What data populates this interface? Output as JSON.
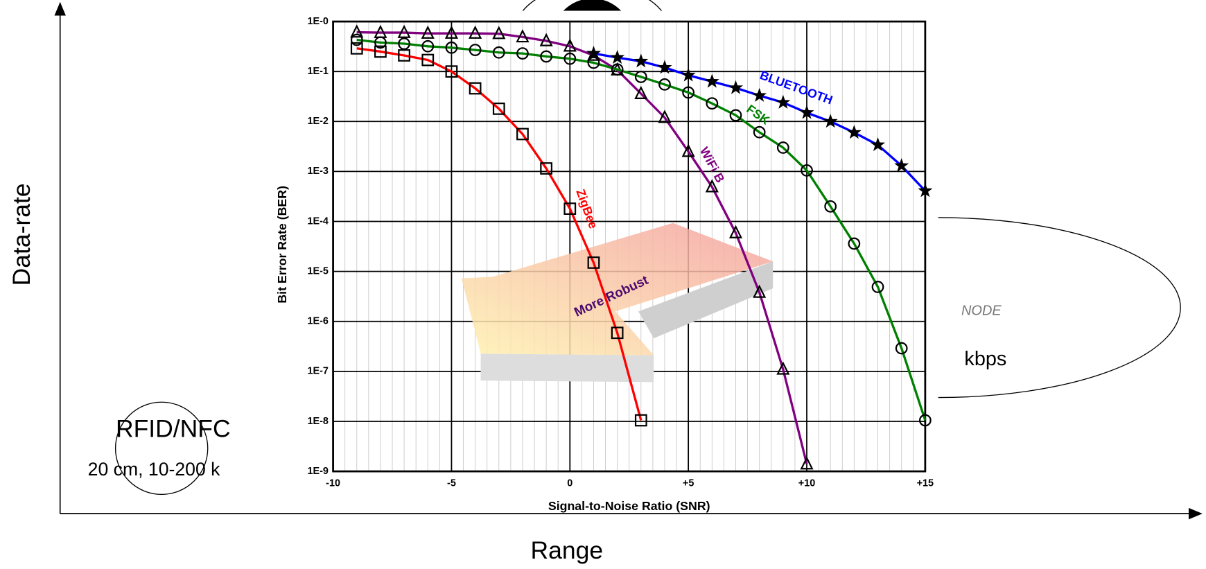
{
  "slide": {
    "y_axis_label": "Data-rate",
    "x_axis_label": "Range",
    "rfid_title": "RFID/NFC",
    "rfid_detail": "20 cm, 10-200 k",
    "node_label": "NODE",
    "node_rate": "kbps"
  },
  "chart_data": {
    "type": "line",
    "x_label": "Signal-to-Noise Ratio (SNR)",
    "y_label": "Bit Error Rate (BER)",
    "annotation": "More Robust",
    "ylog": true,
    "grid": true,
    "xlim": [
      -10,
      15
    ],
    "ylim": [
      1e-09,
      1
    ],
    "xticks": [
      -10,
      -5,
      0,
      {
        "value": 5,
        "label": "+5"
      },
      {
        "value": 10,
        "label": "+10"
      },
      {
        "value": 15,
        "label": "+15"
      }
    ],
    "yticks": [
      {
        "value": 1,
        "label": "1E-0"
      },
      {
        "value": 0.1,
        "label": "1E-1"
      },
      {
        "value": 0.01,
        "label": "1E-2"
      },
      {
        "value": 0.001,
        "label": "1E-3"
      },
      {
        "value": 0.0001,
        "label": "1E-4"
      },
      {
        "value": 1e-05,
        "label": "1E-5"
      },
      {
        "value": 1e-06,
        "label": "1E-6"
      },
      {
        "value": 1e-07,
        "label": "1E-7"
      },
      {
        "value": 1e-08,
        "label": "1E-8"
      },
      {
        "value": 1e-09,
        "label": "1E-9"
      }
    ],
    "series": [
      {
        "name": "ZigBee",
        "color": "#ff0000",
        "marker": "square",
        "x": [
          -9,
          -8,
          -7,
          -6,
          -5,
          -4,
          -3,
          -2,
          -1,
          0,
          1,
          2,
          3
        ],
        "values": [
          0.29,
          0.25,
          0.21,
          0.17,
          0.1,
          0.046,
          0.018,
          0.0056,
          0.00115,
          0.00018,
          1.5e-05,
          5.9e-07,
          1.05e-08
        ]
      },
      {
        "name": "WiFi B",
        "color": "#800080",
        "marker": "triangle",
        "x": [
          -9,
          -8,
          -7,
          -6,
          -5,
          -4,
          -3,
          -2,
          -1,
          0,
          1,
          2,
          3,
          4,
          5,
          6,
          7,
          8,
          9,
          10
        ],
        "values": [
          0.61,
          0.6,
          0.6,
          0.58,
          0.58,
          0.58,
          0.57,
          0.49,
          0.41,
          0.32,
          0.21,
          0.107,
          0.036,
          0.012,
          0.0025,
          0.00049,
          5.9e-05,
          3.8e-06,
          1.1e-07,
          1.4e-09
        ]
      },
      {
        "name": "FSK",
        "color": "#008000",
        "marker": "circle",
        "x": [
          -9,
          -8,
          -7,
          -6,
          -5,
          -4,
          -3,
          -2,
          -1,
          0,
          1,
          2,
          3,
          4,
          5,
          6,
          7,
          8,
          9,
          10,
          11,
          12,
          13,
          14,
          15
        ],
        "values": [
          0.43,
          0.38,
          0.36,
          0.32,
          0.3,
          0.27,
          0.24,
          0.23,
          0.2,
          0.18,
          0.15,
          0.11,
          0.078,
          0.055,
          0.038,
          0.023,
          0.0133,
          0.0061,
          0.003,
          0.00105,
          0.0002,
          3.6e-05,
          4.9e-06,
          2.9e-07,
          1.05e-08
        ]
      },
      {
        "name": "BLUETOOTH",
        "color": "#0000ff",
        "marker": "star",
        "x": [
          1,
          2,
          3,
          4,
          5,
          6,
          7,
          8,
          9,
          10,
          11,
          12,
          13,
          14,
          15
        ],
        "values": [
          0.23,
          0.19,
          0.16,
          0.12,
          0.084,
          0.063,
          0.047,
          0.033,
          0.024,
          0.015,
          0.01,
          0.006,
          0.0034,
          0.0013,
          0.00041
        ]
      }
    ]
  }
}
